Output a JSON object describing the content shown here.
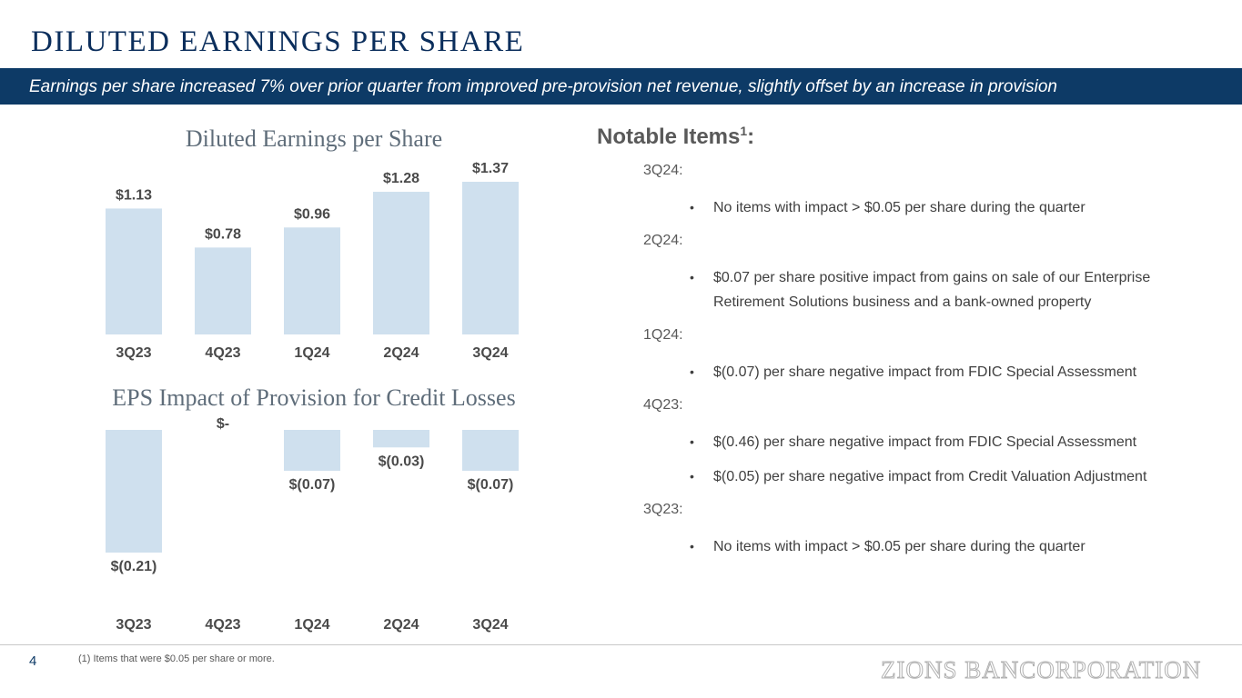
{
  "title": "DILUTED EARNINGS PER SHARE",
  "subtitle": "Earnings per share increased 7% over prior quarter from improved pre-provision net revenue, slightly offset by an increase in provision",
  "colors": {
    "banner": "#0d3a66",
    "bar": "#cfe0ee",
    "title": "#0b2e5c"
  },
  "chart_data": [
    {
      "type": "bar",
      "title": "Diluted Earnings per Share",
      "categories": [
        "3Q23",
        "4Q23",
        "1Q24",
        "2Q24",
        "3Q24"
      ],
      "values": [
        1.13,
        0.78,
        0.96,
        1.28,
        1.37
      ],
      "value_labels": [
        "$1.13",
        "$0.78",
        "$0.96",
        "$1.28",
        "$1.37"
      ],
      "xlabel": "",
      "ylabel": "",
      "ylim": [
        0,
        1.37
      ],
      "grid": false
    },
    {
      "type": "bar",
      "title": "EPS Impact of Provision for Credit Losses",
      "categories": [
        "3Q23",
        "4Q23",
        "1Q24",
        "2Q24",
        "3Q24"
      ],
      "values": [
        -0.21,
        0,
        -0.07,
        -0.03,
        -0.07
      ],
      "value_labels": [
        "$(0.21)",
        "$-",
        "$(0.07)",
        "$(0.03)",
        "$(0.07)"
      ],
      "xlabel": "",
      "ylabel": "",
      "ylim": [
        -0.21,
        0
      ],
      "grid": false
    }
  ],
  "notes": {
    "heading": "Notable Items",
    "heading_sup": "1",
    "heading_suffix": ":",
    "quarters": [
      {
        "label": "3Q24:",
        "items": [
          "No items with impact > $0.05 per share during the quarter"
        ]
      },
      {
        "label": "2Q24:",
        "items": [
          "$0.07 per share positive impact from gains on sale of our Enterprise Retirement Solutions business and a bank-owned property"
        ]
      },
      {
        "label": "1Q24:",
        "items": [
          "$(0.07) per share negative impact from FDIC Special Assessment"
        ]
      },
      {
        "label": "4Q23:",
        "items": [
          "$(0.46) per share negative impact from FDIC Special Assessment",
          "$(0.05) per share negative impact from Credit Valuation Adjustment"
        ]
      },
      {
        "label": "3Q23:",
        "items": [
          "No items with impact > $0.05 per share during the quarter"
        ]
      }
    ]
  },
  "footer": {
    "page_number": "4",
    "footnote": "(1) Items that were $0.05 per share or more.",
    "logo_text": "ZIONS BANCORPORATION"
  }
}
